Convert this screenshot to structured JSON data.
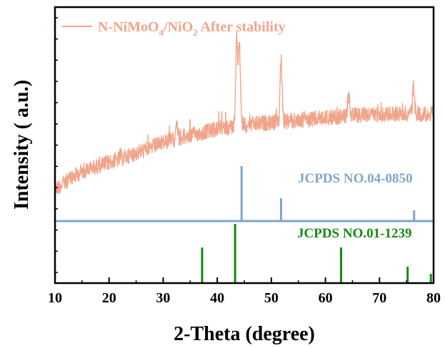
{
  "chart_data": {
    "type": "line",
    "xlabel": "2-Theta (degree)",
    "ylabel": "Intensity ( a.u.)",
    "xlim": [
      10,
      80
    ],
    "xticks": [
      "10",
      "20",
      "30",
      "40",
      "50",
      "60",
      "70",
      "80"
    ],
    "yticks_labeled": false,
    "grid": false,
    "legend": {
      "placement": "top-left",
      "text_main": "N-NiMoO",
      "sub_1": "4",
      "text_mid": "/NiO",
      "sub_2": "2",
      "text_tail": " After stability"
    },
    "series": [
      {
        "name": "N-NiMoO4/NiO2 After stability",
        "color": "#F0A58A",
        "baseline": [
          [
            10,
            265
          ],
          [
            15,
            240
          ],
          [
            20,
            228
          ],
          [
            25,
            215
          ],
          [
            30,
            200
          ],
          [
            35,
            190
          ],
          [
            40,
            181
          ],
          [
            45,
            175
          ],
          [
            50,
            172
          ],
          [
            55,
            169
          ],
          [
            60,
            165
          ],
          [
            65,
            162
          ],
          [
            70,
            160
          ],
          [
            75,
            159
          ],
          [
            80,
            160
          ]
        ],
        "peaks": [
          {
            "x": 32.5,
            "height": 28
          },
          {
            "x": 43.6,
            "height": 120
          },
          {
            "x": 44.1,
            "height": 118
          },
          {
            "x": 51.8,
            "height": 90
          },
          {
            "x": 64.3,
            "height": 28
          },
          {
            "x": 76.3,
            "height": 38
          }
        ]
      }
    ],
    "reference_patterns": [
      {
        "label": "JCPDS NO.04-0850",
        "color": "#7FA6CA",
        "baseline_y": 310,
        "sticks": [
          {
            "x": 44.5,
            "height": 77
          },
          {
            "x": 51.8,
            "height": 32
          },
          {
            "x": 76.4,
            "height": 15
          }
        ]
      },
      {
        "label": "JCPDS NO.01-1239",
        "color": "#138A13",
        "baseline_y": 396,
        "sticks": [
          {
            "x": 37.2,
            "height": 49
          },
          {
            "x": 43.3,
            "height": 82
          },
          {
            "x": 62.9,
            "height": 49
          },
          {
            "x": 75.2,
            "height": 22
          },
          {
            "x": 79.5,
            "height": 12
          }
        ]
      }
    ]
  }
}
